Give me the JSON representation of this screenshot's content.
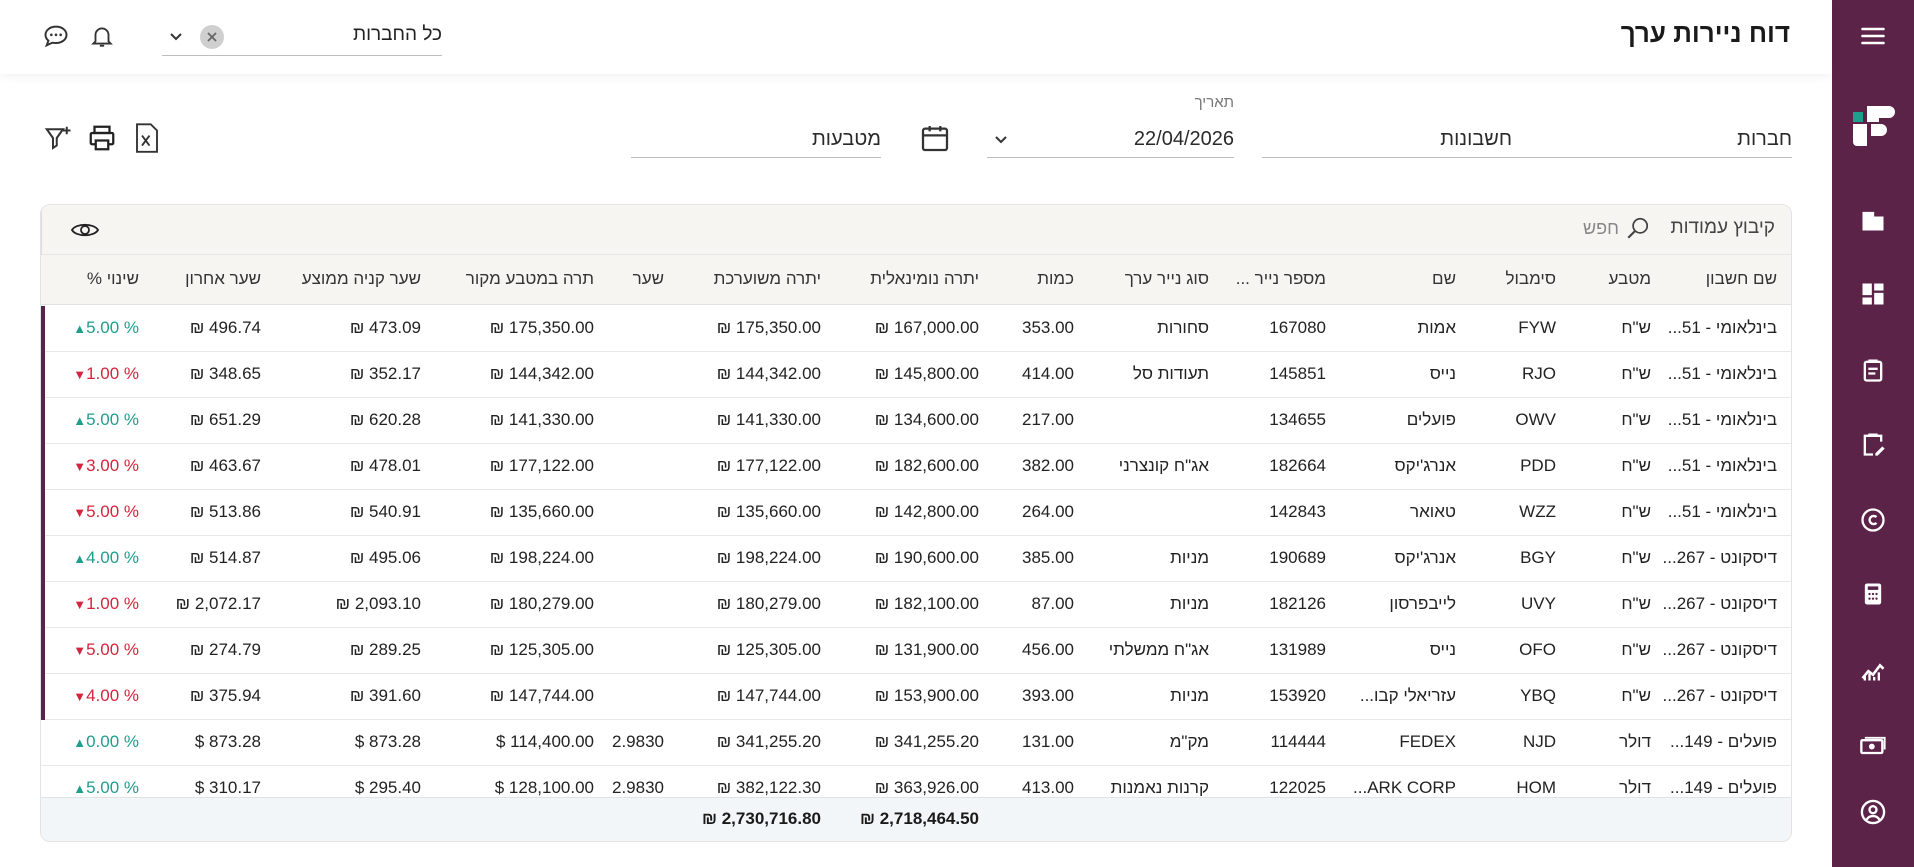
{
  "header": {
    "title": "דוח ניירות ערך",
    "company_filter": {
      "value": "כל החברות"
    }
  },
  "filters": {
    "companies": {
      "value": "חברות"
    },
    "accounts": {
      "value": "חשבונות"
    },
    "date": {
      "label": "תאריך",
      "value": "22/04/2026"
    },
    "currencies": {
      "value": "מטבעות"
    }
  },
  "toolbar": {
    "grouping_label": "קיבוץ עמודות",
    "search_placeholder": "חפש"
  },
  "columns": [
    "שם חשבון",
    "מטבע",
    "סימבול",
    "שם",
    "מספר נייר ...",
    "סוג נייר ערך",
    "כמות",
    "יתרה נומינאלית",
    "יתרה משוערכת",
    "שער",
    "תרה במטבע מקור",
    "שער קניה ממוצע",
    "שער אחרון",
    "שינוי %"
  ],
  "rows": [
    {
      "account": "בינלאומי - 51...",
      "currency": "ש\"ח",
      "symbol": "FYW",
      "name": "אמות",
      "number": "167080",
      "type": "סחורות",
      "qty": "353.00",
      "nominal": "₪ 167,000.00",
      "valued": "₪ 175,350.00",
      "rate": "",
      "orig": "₪ 175,350.00",
      "avg": "₪ 473.09",
      "last": "₪ 496.74",
      "change": "5.00 %",
      "dir": "up",
      "marked": true
    },
    {
      "account": "בינלאומי - 51...",
      "currency": "ש\"ח",
      "symbol": "RJO",
      "name": "נייס",
      "number": "145851",
      "type": "תעודות סל",
      "qty": "414.00",
      "nominal": "₪ 145,800.00",
      "valued": "₪ 144,342.00",
      "rate": "",
      "orig": "₪ 144,342.00",
      "avg": "₪ 352.17",
      "last": "₪ 348.65",
      "change": "1.00 %",
      "dir": "down",
      "marked": true
    },
    {
      "account": "בינלאומי - 51...",
      "currency": "ש\"ח",
      "symbol": "OWV",
      "name": "פועלים",
      "number": "134655",
      "type": "",
      "qty": "217.00",
      "nominal": "₪ 134,600.00",
      "valued": "₪ 141,330.00",
      "rate": "",
      "orig": "₪ 141,330.00",
      "avg": "₪ 620.28",
      "last": "₪ 651.29",
      "change": "5.00 %",
      "dir": "up",
      "marked": true
    },
    {
      "account": "בינלאומי - 51...",
      "currency": "ש\"ח",
      "symbol": "PDD",
      "name": "אנרג'יקס",
      "number": "182664",
      "type": "אג\"ח קונצרני",
      "qty": "382.00",
      "nominal": "₪ 182,600.00",
      "valued": "₪ 177,122.00",
      "rate": "",
      "orig": "₪ 177,122.00",
      "avg": "₪ 478.01",
      "last": "₪ 463.67",
      "change": "3.00 %",
      "dir": "down",
      "marked": true
    },
    {
      "account": "בינלאומי - 51...",
      "currency": "ש\"ח",
      "symbol": "WZZ",
      "name": "טאואר",
      "number": "142843",
      "type": "",
      "qty": "264.00",
      "nominal": "₪ 142,800.00",
      "valued": "₪ 135,660.00",
      "rate": "",
      "orig": "₪ 135,660.00",
      "avg": "₪ 540.91",
      "last": "₪ 513.86",
      "change": "5.00 %",
      "dir": "down",
      "marked": true
    },
    {
      "account": "דיסקונט - 267...",
      "currency": "ש\"ח",
      "symbol": "BGY",
      "name": "אנרג'יקס",
      "number": "190689",
      "type": "מניות",
      "qty": "385.00",
      "nominal": "₪ 190,600.00",
      "valued": "₪ 198,224.00",
      "rate": "",
      "orig": "₪ 198,224.00",
      "avg": "₪ 495.06",
      "last": "₪ 514.87",
      "change": "4.00 %",
      "dir": "up",
      "marked": true
    },
    {
      "account": "דיסקונט - 267...",
      "currency": "ש\"ח",
      "symbol": "UVY",
      "name": "לייבפרסון",
      "number": "182126",
      "type": "מניות",
      "qty": "87.00",
      "nominal": "₪ 182,100.00",
      "valued": "₪ 180,279.00",
      "rate": "",
      "orig": "₪ 180,279.00",
      "avg": "₪ 2,093.10",
      "last": "₪ 2,072.17",
      "change": "1.00 %",
      "dir": "down",
      "marked": true
    },
    {
      "account": "דיסקונט - 267...",
      "currency": "ש\"ח",
      "symbol": "OFO",
      "name": "נייס",
      "number": "131989",
      "type": "אג\"ח ממשלתי",
      "qty": "456.00",
      "nominal": "₪ 131,900.00",
      "valued": "₪ 125,305.00",
      "rate": "",
      "orig": "₪ 125,305.00",
      "avg": "₪ 289.25",
      "last": "₪ 274.79",
      "change": "5.00 %",
      "dir": "down",
      "marked": true
    },
    {
      "account": "דיסקונט - 267...",
      "currency": "ש\"ח",
      "symbol": "YBQ",
      "name": "עזריאלי קבו...",
      "number": "153920",
      "type": "מניות",
      "qty": "393.00",
      "nominal": "₪ 153,900.00",
      "valued": "₪ 147,744.00",
      "rate": "",
      "orig": "₪ 147,744.00",
      "avg": "₪ 391.60",
      "last": "₪ 375.94",
      "change": "4.00 %",
      "dir": "down",
      "marked": true
    },
    {
      "account": "פועלים - 149...",
      "currency": "דולר",
      "symbol": "NJD",
      "name": "FEDEX",
      "number": "114444",
      "type": "מק\"מ",
      "qty": "131.00",
      "nominal": "₪ 341,255.20",
      "valued": "₪ 341,255.20",
      "rate": "2.9830",
      "orig": "$ 114,400.00",
      "avg": "$ 873.28",
      "last": "$ 873.28",
      "change": "0.00 %",
      "dir": "up",
      "marked": false
    },
    {
      "account": "פועלים - 149...",
      "currency": "דולר",
      "symbol": "HOM",
      "name": "ARK CORP...",
      "number": "122025",
      "type": "קרנות נאמנות",
      "qty": "413.00",
      "nominal": "₪ 363,926.00",
      "valued": "₪ 382,122.30",
      "rate": "2.9830",
      "orig": "$ 128,100.00",
      "avg": "$ 295.40",
      "last": "$ 310.17",
      "change": "5.00 %",
      "dir": "up",
      "marked": false
    }
  ],
  "totals": {
    "nominal": "₪ 2,718,464.50",
    "valued": "₪ 2,730,716.80"
  },
  "colors": {
    "sidebar": "#5b2348",
    "up": "#1f9e8c",
    "down": "#d3253d"
  }
}
